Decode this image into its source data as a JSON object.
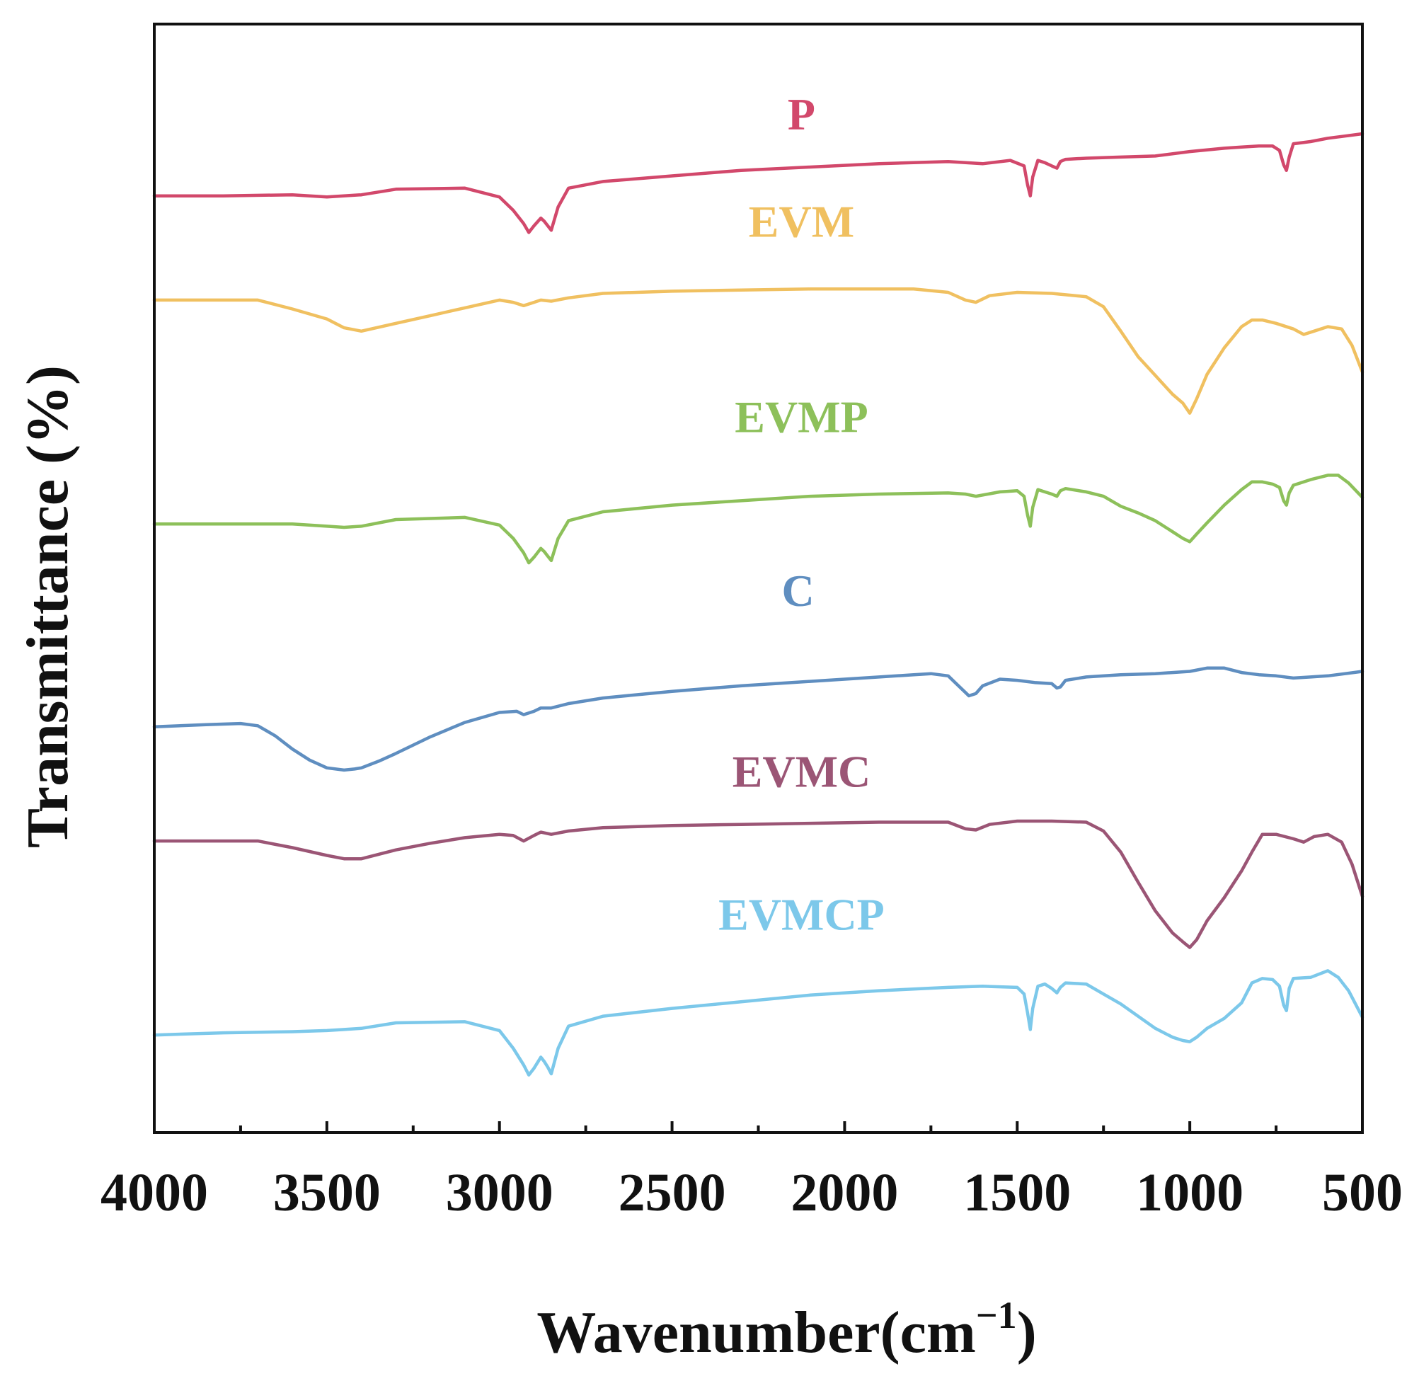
{
  "chart_data": {
    "type": "line",
    "title": "",
    "xlabel": "Wavenumber(cm",
    "xlabel_sup": "−1",
    "xlabel_close": ")",
    "ylabel": "Transmittance (%)",
    "xlim": [
      4000,
      500
    ],
    "ylim": [
      0,
      100
    ],
    "x_reversed": true,
    "y_ticks_shown": false,
    "x_ticks": [
      "4000",
      "3500",
      "3000",
      "2500",
      "2000",
      "1500",
      "1000",
      "500"
    ],
    "series": [
      {
        "name": "P",
        "color": "#d2486b",
        "label_x": 2125,
        "label_y": 90.5,
        "x": [
          4000,
          3800,
          3600,
          3500,
          3400,
          3300,
          3100,
          3000,
          2960,
          2930,
          2915,
          2900,
          2880,
          2870,
          2860,
          2850,
          2830,
          2800,
          2700,
          2500,
          2300,
          2100,
          1900,
          1700,
          1600,
          1520,
          1480,
          1470,
          1462,
          1455,
          1440,
          1420,
          1400,
          1385,
          1375,
          1360,
          1300,
          1200,
          1100,
          1000,
          900,
          850,
          800,
          760,
          740,
          728,
          720,
          712,
          700,
          650,
          600,
          550,
          500
        ],
        "y": [
          84.5,
          84.5,
          84.6,
          84.4,
          84.6,
          85.1,
          85.2,
          84.4,
          83.2,
          82.0,
          81.2,
          81.8,
          82.5,
          82.2,
          81.8,
          81.4,
          83.5,
          85.2,
          85.8,
          86.3,
          86.8,
          87.1,
          87.4,
          87.6,
          87.4,
          87.7,
          87.2,
          85.5,
          84.5,
          86.2,
          87.7,
          87.5,
          87.2,
          87.0,
          87.6,
          87.8,
          87.9,
          88.0,
          88.1,
          88.5,
          88.8,
          88.9,
          89.0,
          89.0,
          88.6,
          87.3,
          86.8,
          88.0,
          89.2,
          89.4,
          89.7,
          89.9,
          90.1
        ]
      },
      {
        "name": "EVM",
        "color": "#f0c060",
        "label_x": 2125,
        "label_y": 80.8,
        "x": [
          4000,
          3800,
          3700,
          3600,
          3500,
          3450,
          3400,
          3300,
          3200,
          3100,
          3000,
          2960,
          2930,
          2900,
          2880,
          2850,
          2800,
          2700,
          2500,
          2300,
          2100,
          1900,
          1800,
          1700,
          1650,
          1620,
          1580,
          1500,
          1400,
          1300,
          1250,
          1200,
          1150,
          1100,
          1050,
          1020,
          1000,
          980,
          950,
          900,
          850,
          820,
          790,
          750,
          700,
          670,
          640,
          600,
          560,
          530,
          500
        ],
        "y": [
          75.1,
          75.1,
          75.1,
          74.3,
          73.4,
          72.6,
          72.3,
          73.0,
          73.7,
          74.4,
          75.1,
          74.9,
          74.6,
          74.9,
          75.1,
          75.0,
          75.3,
          75.7,
          75.9,
          76.0,
          76.1,
          76.1,
          76.1,
          75.8,
          75.1,
          74.9,
          75.5,
          75.8,
          75.7,
          75.4,
          74.5,
          72.3,
          70.0,
          68.3,
          66.6,
          65.8,
          64.9,
          66.2,
          68.4,
          70.8,
          72.7,
          73.3,
          73.3,
          73.0,
          72.5,
          72.0,
          72.3,
          72.7,
          72.5,
          71.0,
          68.6
        ]
      },
      {
        "name": "EVMP",
        "color": "#8dc05a",
        "label_x": 2125,
        "label_y": 63.2,
        "x": [
          4000,
          3800,
          3600,
          3500,
          3450,
          3400,
          3300,
          3100,
          3000,
          2960,
          2930,
          2915,
          2900,
          2880,
          2870,
          2860,
          2850,
          2830,
          2800,
          2700,
          2500,
          2300,
          2100,
          1900,
          1700,
          1650,
          1620,
          1550,
          1500,
          1480,
          1470,
          1462,
          1455,
          1440,
          1420,
          1400,
          1385,
          1375,
          1360,
          1300,
          1250,
          1200,
          1150,
          1100,
          1050,
          1020,
          1000,
          980,
          950,
          900,
          850,
          820,
          790,
          760,
          740,
          728,
          720,
          712,
          700,
          650,
          600,
          570,
          540,
          500
        ],
        "y": [
          54.9,
          54.9,
          54.9,
          54.7,
          54.6,
          54.7,
          55.3,
          55.5,
          54.8,
          53.6,
          52.3,
          51.4,
          51.9,
          52.7,
          52.4,
          52.0,
          51.6,
          53.6,
          55.2,
          56.0,
          56.6,
          57.0,
          57.4,
          57.6,
          57.7,
          57.6,
          57.4,
          57.8,
          57.9,
          57.4,
          55.7,
          54.7,
          56.4,
          58.0,
          57.8,
          57.6,
          57.4,
          57.9,
          58.1,
          57.8,
          57.4,
          56.5,
          55.9,
          55.2,
          54.2,
          53.6,
          53.3,
          54.0,
          55.0,
          56.6,
          58.0,
          58.7,
          58.7,
          58.5,
          58.2,
          57.0,
          56.6,
          57.7,
          58.4,
          58.9,
          59.3,
          59.3,
          58.6,
          57.3
        ]
      },
      {
        "name": "C",
        "color": "#5f8ec0",
        "label_x": 2135,
        "label_y": 47.5,
        "x": [
          4000,
          3850,
          3750,
          3700,
          3650,
          3600,
          3550,
          3500,
          3450,
          3420,
          3400,
          3350,
          3300,
          3200,
          3100,
          3000,
          2950,
          2930,
          2900,
          2880,
          2850,
          2800,
          2700,
          2500,
          2300,
          2100,
          1900,
          1800,
          1750,
          1700,
          1680,
          1650,
          1640,
          1620,
          1600,
          1550,
          1500,
          1450,
          1400,
          1385,
          1375,
          1360,
          1300,
          1200,
          1100,
          1000,
          950,
          900,
          850,
          800,
          750,
          700,
          650,
          600,
          550,
          500
        ],
        "y": [
          36.6,
          36.8,
          36.9,
          36.7,
          35.8,
          34.6,
          33.6,
          32.9,
          32.7,
          32.8,
          32.9,
          33.5,
          34.2,
          35.7,
          37.0,
          37.9,
          38.0,
          37.7,
          38.0,
          38.3,
          38.3,
          38.7,
          39.2,
          39.8,
          40.3,
          40.7,
          41.1,
          41.3,
          41.4,
          41.2,
          40.6,
          39.7,
          39.4,
          39.6,
          40.3,
          40.9,
          40.8,
          40.6,
          40.5,
          40.1,
          40.2,
          40.8,
          41.1,
          41.3,
          41.4,
          41.6,
          41.9,
          41.9,
          41.5,
          41.3,
          41.2,
          41.0,
          41.1,
          41.2,
          41.4,
          41.6
        ]
      },
      {
        "name": "EVMC",
        "color": "#9b5575",
        "label_x": 2125,
        "label_y": 31.2,
        "x": [
          4000,
          3800,
          3700,
          3600,
          3500,
          3450,
          3400,
          3300,
          3200,
          3100,
          3000,
          2960,
          2930,
          2900,
          2880,
          2850,
          2800,
          2700,
          2500,
          2300,
          2100,
          1900,
          1800,
          1700,
          1650,
          1620,
          1580,
          1500,
          1400,
          1300,
          1250,
          1200,
          1150,
          1100,
          1050,
          1020,
          1000,
          980,
          950,
          900,
          850,
          820,
          790,
          750,
          700,
          670,
          640,
          600,
          560,
          530,
          500
        ],
        "y": [
          26.3,
          26.3,
          26.3,
          25.7,
          25.0,
          24.7,
          24.7,
          25.5,
          26.1,
          26.6,
          26.9,
          26.8,
          26.3,
          26.8,
          27.1,
          26.9,
          27.2,
          27.5,
          27.7,
          27.8,
          27.9,
          28.0,
          28.0,
          28.0,
          27.4,
          27.3,
          27.8,
          28.1,
          28.1,
          28.0,
          27.2,
          25.3,
          22.6,
          20.0,
          18.0,
          17.2,
          16.7,
          17.4,
          19.1,
          21.2,
          23.6,
          25.3,
          26.9,
          26.9,
          26.5,
          26.2,
          26.7,
          26.9,
          26.2,
          24.2,
          21.3
        ]
      },
      {
        "name": "EVMCP",
        "color": "#7cc8ea",
        "label_x": 2125,
        "label_y": 18.3,
        "x": [
          4000,
          3800,
          3600,
          3500,
          3450,
          3400,
          3300,
          3100,
          3000,
          2960,
          2930,
          2915,
          2900,
          2880,
          2870,
          2860,
          2850,
          2830,
          2800,
          2700,
          2500,
          2300,
          2100,
          1900,
          1700,
          1600,
          1500,
          1480,
          1470,
          1462,
          1455,
          1440,
          1420,
          1400,
          1385,
          1375,
          1360,
          1300,
          1250,
          1200,
          1150,
          1100,
          1050,
          1020,
          1000,
          980,
          950,
          900,
          850,
          820,
          790,
          760,
          740,
          728,
          720,
          712,
          700,
          650,
          600,
          570,
          540,
          500
        ],
        "y": [
          8.8,
          9.0,
          9.1,
          9.2,
          9.3,
          9.4,
          9.9,
          10.0,
          9.2,
          7.6,
          6.1,
          5.2,
          5.8,
          6.8,
          6.4,
          5.9,
          5.3,
          7.6,
          9.6,
          10.5,
          11.2,
          11.8,
          12.4,
          12.8,
          13.1,
          13.2,
          13.1,
          12.5,
          10.8,
          9.3,
          11.2,
          13.2,
          13.4,
          13.0,
          12.6,
          13.1,
          13.5,
          13.4,
          12.5,
          11.6,
          10.5,
          9.4,
          8.6,
          8.3,
          8.2,
          8.6,
          9.4,
          10.3,
          11.7,
          13.5,
          13.9,
          13.8,
          13.2,
          11.5,
          11.0,
          13.0,
          13.9,
          14.0,
          14.6,
          14.0,
          12.8,
          10.4
        ]
      }
    ]
  }
}
